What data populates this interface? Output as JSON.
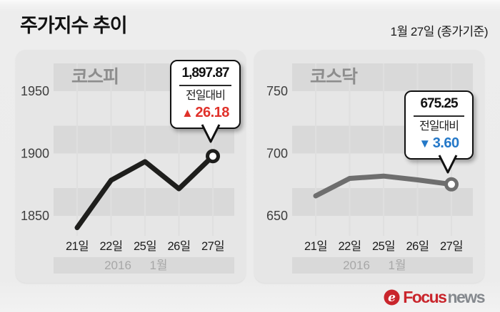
{
  "page": {
    "title": "주가지수 추이",
    "date_label": "1월 27일 (종가기준)"
  },
  "colors": {
    "up_red": "#e0312a",
    "down_blue": "#2478c8",
    "kospi_line": "#1e1e1c",
    "kosdaq_line": "#6e6e6e",
    "panel_bg": "#e6e6e6",
    "stripe": "#d9d9d9",
    "brand_red": "#c9252c",
    "brand_gray": "#85898e"
  },
  "chart_data": [
    {
      "type": "line",
      "title": "코스피",
      "categories": [
        "21일",
        "22일",
        "25일",
        "26일",
        "27일"
      ],
      "values": [
        1840.5,
        1878.5,
        1893.5,
        1871.69,
        1897.87
      ],
      "y_gridlines": [
        1850,
        1900,
        1950
      ],
      "y_tick_labels": [
        "1850",
        "1900",
        "1950"
      ],
      "ylim": [
        1830,
        1985
      ],
      "x_footer": {
        "year": "2016",
        "month": "1월"
      },
      "line_color": "#1e1e1c",
      "legend_position": "none",
      "grid": "horizontal-bands",
      "callout": {
        "value": "1,897.87",
        "compare_label": "전일대비",
        "arrow": "▲",
        "change": "26.18",
        "direction": "up",
        "color": "#e0312a"
      }
    },
    {
      "type": "line",
      "title": "코스닥",
      "categories": [
        "21일",
        "22일",
        "25일",
        "26일",
        "27일"
      ],
      "values": [
        666.0,
        680.0,
        681.9,
        678.85,
        675.25
      ],
      "y_gridlines": [
        650,
        700,
        750
      ],
      "y_tick_labels": [
        "650",
        "700",
        "750"
      ],
      "ylim": [
        640,
        775
      ],
      "x_footer": {
        "year": "2016",
        "month": "1월"
      },
      "line_color": "#6e6e6e",
      "legend_position": "none",
      "grid": "horizontal-bands",
      "callout": {
        "value": "675.25",
        "compare_label": "전일대비",
        "arrow": "▼",
        "change": "3.60",
        "direction": "down",
        "color": "#2478c8"
      }
    }
  ],
  "footer": {
    "brand_bold": "Focus",
    "brand_light": "news",
    "logo_glyph": "e"
  }
}
